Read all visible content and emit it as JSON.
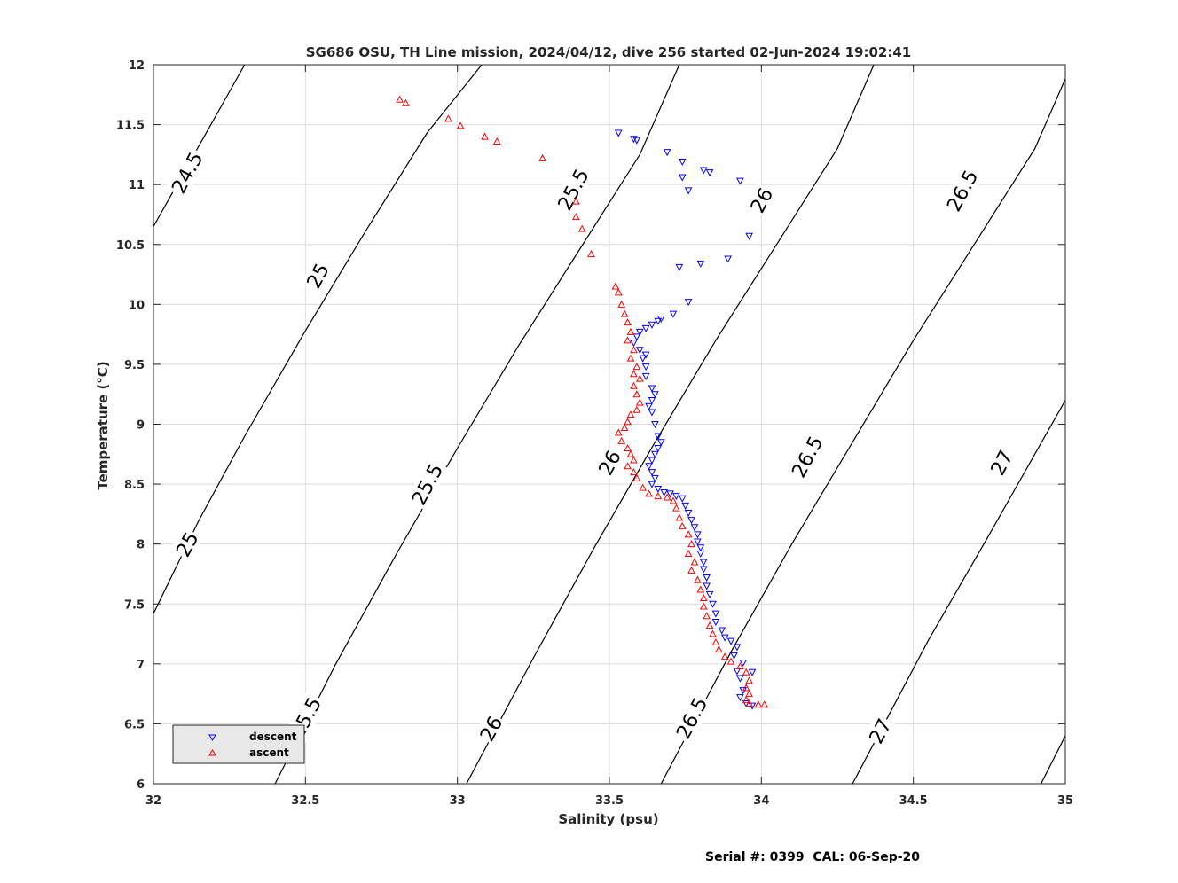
{
  "chart_data": {
    "type": "scatter",
    "title": "SG686 OSU, TH Line mission, 2024/04/12, dive 256 started 02-Jun-2024 19:02:41",
    "xlabel": "Salinity (psu)",
    "ylabel": "Temperature (°C)",
    "xlim": [
      32,
      35
    ],
    "ylim": [
      6,
      12
    ],
    "x_ticks": [
      "32",
      "32.5",
      "33",
      "33.5",
      "34",
      "34.5",
      "35"
    ],
    "y_ticks": [
      "6",
      "6.5",
      "7",
      "7.5",
      "8",
      "8.5",
      "9",
      "9.5",
      "10",
      "10.5",
      "11",
      "11.5",
      "12"
    ],
    "grid": true,
    "legend_position": "bottom-left",
    "footer": "Serial #: 0399  CAL: 06-Sep-20",
    "contours": [
      {
        "label": "24.5",
        "points": [
          [
            32.0,
            10.65
          ],
          [
            32.3,
            12.0
          ]
        ]
      },
      {
        "label": "25",
        "points": [
          [
            32.0,
            7.42
          ],
          [
            32.15,
            8.2
          ],
          [
            32.3,
            8.9
          ],
          [
            32.5,
            9.78
          ],
          [
            32.7,
            10.62
          ],
          [
            32.9,
            11.43
          ],
          [
            33.08,
            12.0
          ]
        ]
      },
      {
        "label": "25.5",
        "points": [
          [
            32.4,
            6.0
          ],
          [
            32.6,
            7.0
          ],
          [
            32.8,
            7.92
          ],
          [
            33.0,
            8.8
          ],
          [
            33.2,
            9.65
          ],
          [
            33.4,
            10.45
          ],
          [
            33.6,
            11.25
          ],
          [
            33.73,
            12.0
          ]
        ]
      },
      {
        "label": "26",
        "points": [
          [
            33.03,
            6.0
          ],
          [
            33.25,
            7.05
          ],
          [
            33.45,
            7.97
          ],
          [
            33.65,
            8.85
          ],
          [
            33.85,
            9.7
          ],
          [
            34.05,
            10.5
          ],
          [
            34.25,
            11.3
          ],
          [
            34.37,
            12.0
          ]
        ]
      },
      {
        "label": "26.5",
        "points": [
          [
            33.67,
            6.0
          ],
          [
            33.9,
            7.1
          ],
          [
            34.1,
            8.0
          ],
          [
            34.3,
            8.85
          ],
          [
            34.5,
            9.7
          ],
          [
            34.7,
            10.5
          ],
          [
            34.9,
            11.3
          ],
          [
            35.02,
            12.0
          ]
        ]
      },
      {
        "label": "27",
        "points": [
          [
            34.3,
            6.0
          ],
          [
            34.55,
            7.2
          ],
          [
            34.75,
            8.08
          ],
          [
            35.0,
            9.2
          ]
        ]
      },
      {
        "label": "",
        "points": [
          [
            34.92,
            6.0
          ],
          [
            35.0,
            6.4
          ]
        ]
      }
    ],
    "contour_labels": [
      {
        "text": "24.5",
        "x": 32.11,
        "y": 11.1
      },
      {
        "text": "25",
        "x": 32.54,
        "y": 10.24
      },
      {
        "text": "25",
        "x": 32.11,
        "y": 8.0
      },
      {
        "text": "25.5",
        "x": 33.38,
        "y": 10.96
      },
      {
        "text": "25.5",
        "x": 32.9,
        "y": 8.5
      },
      {
        "text": "25.5",
        "x": 32.5,
        "y": 6.55
      },
      {
        "text": "26",
        "x": 34.0,
        "y": 10.87
      },
      {
        "text": "26",
        "x": 33.5,
        "y": 8.68
      },
      {
        "text": "26",
        "x": 33.11,
        "y": 6.46
      },
      {
        "text": "26.5",
        "x": 34.66,
        "y": 10.95
      },
      {
        "text": "26.5",
        "x": 34.15,
        "y": 8.73
      },
      {
        "text": "26.5",
        "x": 33.77,
        "y": 6.55
      },
      {
        "text": "27",
        "x": 34.79,
        "y": 8.68
      },
      {
        "text": "27",
        "x": 34.39,
        "y": 6.44
      }
    ],
    "series": [
      {
        "name": "descent",
        "color": "#0000ff",
        "marker": "triangle-down",
        "points": [
          [
            33.53,
            11.43
          ],
          [
            33.58,
            11.38
          ],
          [
            33.59,
            11.37
          ],
          [
            33.69,
            11.27
          ],
          [
            33.74,
            11.19
          ],
          [
            33.81,
            11.12
          ],
          [
            33.83,
            11.1
          ],
          [
            33.93,
            11.03
          ],
          [
            33.74,
            11.06
          ],
          [
            33.76,
            10.95
          ],
          [
            33.96,
            10.57
          ],
          [
            33.89,
            10.38
          ],
          [
            33.8,
            10.34
          ],
          [
            33.73,
            10.31
          ],
          [
            33.76,
            10.02
          ],
          [
            33.71,
            9.92
          ],
          [
            33.67,
            9.88
          ],
          [
            33.66,
            9.86
          ],
          [
            33.64,
            9.83
          ],
          [
            33.62,
            9.8
          ],
          [
            33.6,
            9.77
          ],
          [
            33.59,
            9.73
          ],
          [
            33.58,
            9.68
          ],
          [
            33.6,
            9.62
          ],
          [
            33.62,
            9.58
          ],
          [
            33.61,
            9.55
          ],
          [
            33.62,
            9.48
          ],
          [
            33.62,
            9.4
          ],
          [
            33.64,
            9.3
          ],
          [
            33.65,
            9.25
          ],
          [
            33.64,
            9.2
          ],
          [
            33.63,
            9.15
          ],
          [
            33.64,
            9.1
          ],
          [
            33.65,
            9.0
          ],
          [
            33.66,
            8.9
          ],
          [
            33.67,
            8.85
          ],
          [
            33.66,
            8.8
          ],
          [
            33.65,
            8.75
          ],
          [
            33.64,
            8.7
          ],
          [
            33.63,
            8.65
          ],
          [
            33.64,
            8.6
          ],
          [
            33.65,
            8.55
          ],
          [
            33.64,
            8.5
          ],
          [
            33.66,
            8.46
          ],
          [
            33.68,
            8.43
          ],
          [
            33.7,
            8.42
          ],
          [
            33.72,
            8.4
          ],
          [
            33.74,
            8.38
          ],
          [
            33.75,
            8.32
          ],
          [
            33.76,
            8.26
          ],
          [
            33.77,
            8.2
          ],
          [
            33.78,
            8.14
          ],
          [
            33.79,
            8.08
          ],
          [
            33.79,
            8.02
          ],
          [
            33.8,
            7.97
          ],
          [
            33.8,
            7.92
          ],
          [
            33.81,
            7.85
          ],
          [
            33.81,
            7.79
          ],
          [
            33.82,
            7.72
          ],
          [
            33.82,
            7.65
          ],
          [
            33.83,
            7.58
          ],
          [
            33.84,
            7.5
          ],
          [
            33.85,
            7.42
          ],
          [
            33.85,
            7.35
          ],
          [
            33.87,
            7.28
          ],
          [
            33.88,
            7.22
          ],
          [
            33.9,
            7.19
          ],
          [
            33.92,
            7.14
          ],
          [
            33.91,
            7.07
          ],
          [
            33.94,
            7.01
          ],
          [
            33.92,
            6.94
          ],
          [
            33.93,
            6.88
          ],
          [
            33.97,
            6.93
          ],
          [
            33.94,
            6.78
          ],
          [
            33.93,
            6.72
          ],
          [
            33.95,
            6.67
          ],
          [
            33.97,
            6.65
          ]
        ]
      },
      {
        "name": "ascent",
        "color": "#ff0000",
        "marker": "triangle-up",
        "points": [
          [
            32.81,
            11.71
          ],
          [
            32.83,
            11.68
          ],
          [
            32.97,
            11.55
          ],
          [
            33.01,
            11.49
          ],
          [
            33.09,
            11.4
          ],
          [
            33.13,
            11.36
          ],
          [
            33.28,
            11.22
          ],
          [
            33.39,
            10.86
          ],
          [
            33.39,
            10.73
          ],
          [
            33.41,
            10.63
          ],
          [
            33.44,
            10.42
          ],
          [
            33.52,
            10.15
          ],
          [
            33.53,
            10.1
          ],
          [
            33.54,
            10.0
          ],
          [
            33.55,
            9.92
          ],
          [
            33.56,
            9.85
          ],
          [
            33.57,
            9.77
          ],
          [
            33.56,
            9.7
          ],
          [
            33.58,
            9.62
          ],
          [
            33.57,
            9.55
          ],
          [
            33.59,
            9.48
          ],
          [
            33.58,
            9.42
          ],
          [
            33.6,
            9.38
          ],
          [
            33.58,
            9.32
          ],
          [
            33.59,
            9.25
          ],
          [
            33.6,
            9.18
          ],
          [
            33.59,
            9.12
          ],
          [
            33.57,
            9.08
          ],
          [
            33.56,
            9.02
          ],
          [
            33.55,
            8.97
          ],
          [
            33.53,
            8.93
          ],
          [
            33.54,
            8.86
          ],
          [
            33.56,
            8.8
          ],
          [
            33.57,
            8.75
          ],
          [
            33.58,
            8.7
          ],
          [
            33.56,
            8.65
          ],
          [
            33.58,
            8.6
          ],
          [
            33.59,
            8.55
          ],
          [
            33.61,
            8.47
          ],
          [
            33.63,
            8.42
          ],
          [
            33.66,
            8.4
          ],
          [
            33.69,
            8.39
          ],
          [
            33.71,
            8.36
          ],
          [
            33.72,
            8.3
          ],
          [
            33.73,
            8.22
          ],
          [
            33.74,
            8.15
          ],
          [
            33.76,
            8.08
          ],
          [
            33.77,
            8.0
          ],
          [
            33.76,
            7.92
          ],
          [
            33.78,
            7.85
          ],
          [
            33.77,
            7.78
          ],
          [
            33.79,
            7.7
          ],
          [
            33.8,
            7.62
          ],
          [
            33.81,
            7.55
          ],
          [
            33.81,
            7.48
          ],
          [
            33.82,
            7.4
          ],
          [
            33.83,
            7.32
          ],
          [
            33.84,
            7.25
          ],
          [
            33.85,
            7.18
          ],
          [
            33.86,
            7.12
          ],
          [
            33.88,
            7.06
          ],
          [
            33.9,
            7.02
          ],
          [
            33.93,
            6.98
          ],
          [
            33.95,
            6.93
          ],
          [
            33.96,
            6.86
          ],
          [
            33.95,
            6.8
          ],
          [
            33.96,
            6.75
          ],
          [
            33.95,
            6.7
          ],
          [
            33.96,
            6.67
          ],
          [
            33.99,
            6.66
          ],
          [
            34.01,
            6.66
          ]
        ]
      }
    ]
  }
}
